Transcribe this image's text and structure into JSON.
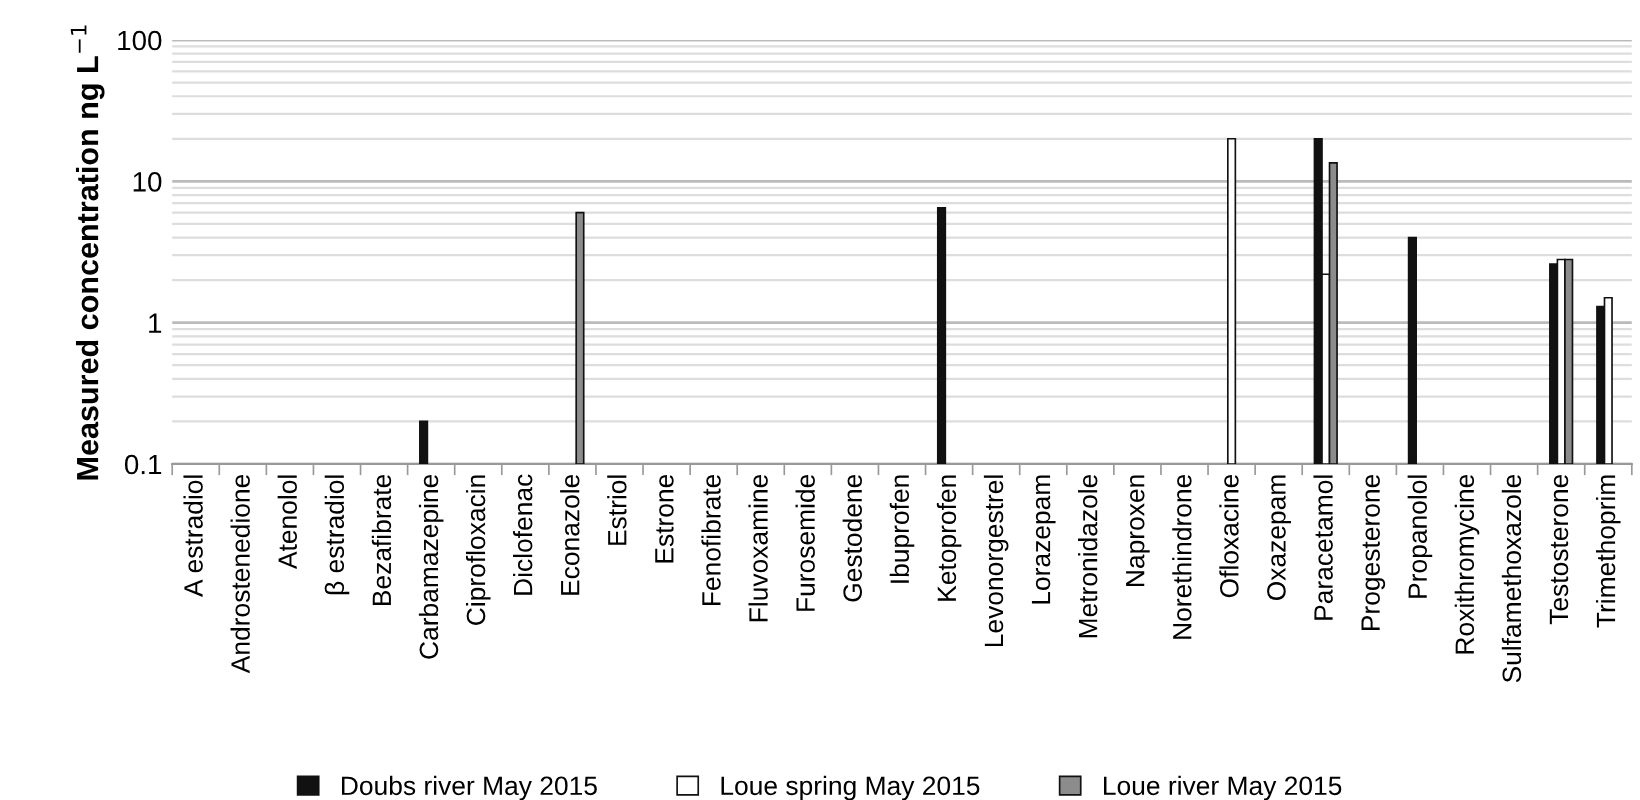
{
  "chart_data": {
    "type": "bar",
    "ylabel": "Measured concentration ng L$^{−1}$",
    "log": "y",
    "ylim": [
      0.1,
      100
    ],
    "yticks": [
      0.1,
      1,
      10,
      100
    ],
    "grid": "y",
    "legend": "bottom",
    "categories": [
      "A estradiol",
      "Androstenedione",
      "Atenolol",
      "β estradiol",
      "Bezafibrate",
      "Carbamazepine",
      "Ciprofloxacin",
      "Diclofenac",
      "Econazole",
      "Estriol",
      "Estrone",
      "Fenofibrate",
      "Fluvoxamine",
      "Furosemide",
      "Gestodene",
      "Ibuprofen",
      "Ketoprofen",
      "Levonorgestrel",
      "Lorazepam",
      "Metronidazole",
      "Naproxen",
      "Norethindrone",
      "Ofloxacine",
      "Oxazepam",
      "Paracetamol",
      "Progesterone",
      "Propanolol",
      "Roxithromycine",
      "Sulfamethoxazole",
      "Testosterone",
      "Trimethoprim"
    ],
    "series": [
      {
        "name": "Doubs river May 2015",
        "color": "#111111",
        "values": [
          null,
          null,
          null,
          null,
          null,
          0.2,
          null,
          null,
          null,
          null,
          null,
          null,
          null,
          null,
          null,
          null,
          6.5,
          null,
          null,
          null,
          null,
          null,
          null,
          null,
          20,
          null,
          4,
          null,
          null,
          2.6,
          1.3
        ]
      },
      {
        "name": "Loue spring May 2015",
        "color": "#ffffff",
        "values": [
          null,
          null,
          null,
          null,
          null,
          null,
          null,
          null,
          null,
          null,
          null,
          null,
          null,
          null,
          null,
          null,
          null,
          null,
          null,
          null,
          null,
          null,
          20,
          null,
          2.2,
          null,
          null,
          null,
          null,
          2.8,
          1.5
        ]
      },
      {
        "name": "Loue river May 2015",
        "color": "#8c8c8c",
        "values": [
          null,
          null,
          null,
          null,
          null,
          null,
          null,
          null,
          6,
          null,
          null,
          null,
          null,
          null,
          null,
          null,
          null,
          null,
          null,
          null,
          null,
          null,
          null,
          null,
          13.5,
          null,
          null,
          null,
          null,
          2.8,
          null
        ]
      }
    ]
  }
}
